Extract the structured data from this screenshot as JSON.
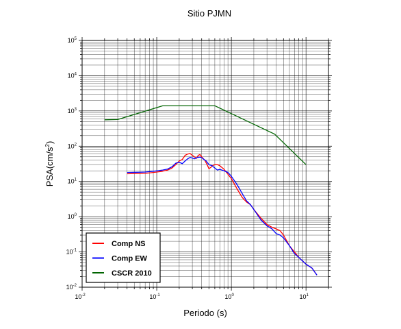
{
  "chart_data": {
    "type": "line",
    "title": "Sitio PJMN",
    "xlabel": "Periodo (s)",
    "ylabel": {
      "prefix": "PSA(cm/s",
      "exponent": "2",
      "suffix": ")"
    },
    "x_scale": "log",
    "y_scale": "log",
    "xlim": [
      0.01,
      20
    ],
    "ylim": [
      0.01,
      100000
    ],
    "grid": true,
    "legend_placement": "bottom-left",
    "x_ticks": [
      {
        "value": 0.01,
        "base": "10",
        "exp": "-2"
      },
      {
        "value": 0.1,
        "base": "10",
        "exp": "-1"
      },
      {
        "value": 1,
        "base": "10",
        "exp": "0"
      },
      {
        "value": 10,
        "base": "10",
        "exp": "1"
      }
    ],
    "y_ticks": [
      {
        "value": 0.01,
        "base": "10",
        "exp": "-2"
      },
      {
        "value": 0.1,
        "base": "10",
        "exp": "-1"
      },
      {
        "value": 1,
        "base": "10",
        "exp": "0"
      },
      {
        "value": 10,
        "base": "10",
        "exp": "1"
      },
      {
        "value": 100,
        "base": "10",
        "exp": "2"
      },
      {
        "value": 1000,
        "base": "10",
        "exp": "3"
      },
      {
        "value": 10000,
        "base": "10",
        "exp": "4"
      },
      {
        "value": 100000,
        "base": "10",
        "exp": "5"
      }
    ],
    "series": [
      {
        "name": "Comp NS",
        "color": "#ff0000",
        "points": [
          [
            0.04,
            16.5
          ],
          [
            0.05,
            16.7
          ],
          [
            0.06,
            16.8
          ],
          [
            0.07,
            17
          ],
          [
            0.08,
            17.5
          ],
          [
            0.09,
            18
          ],
          [
            0.1,
            18.5
          ],
          [
            0.12,
            19.5
          ],
          [
            0.14,
            21
          ],
          [
            0.16,
            24
          ],
          [
            0.18,
            30
          ],
          [
            0.2,
            38
          ],
          [
            0.22,
            42
          ],
          [
            0.24,
            55
          ],
          [
            0.26,
            60
          ],
          [
            0.28,
            62
          ],
          [
            0.3,
            55
          ],
          [
            0.32,
            50
          ],
          [
            0.34,
            45
          ],
          [
            0.36,
            55
          ],
          [
            0.38,
            58
          ],
          [
            0.4,
            50
          ],
          [
            0.44,
            40
          ],
          [
            0.48,
            28
          ],
          [
            0.5,
            23
          ],
          [
            0.53,
            25
          ],
          [
            0.56,
            28
          ],
          [
            0.6,
            30
          ],
          [
            0.65,
            30
          ],
          [
            0.7,
            28
          ],
          [
            0.8,
            22
          ],
          [
            0.9,
            16
          ],
          [
            1.0,
            12
          ],
          [
            1.2,
            6
          ],
          [
            1.4,
            3.5
          ],
          [
            1.6,
            2.6
          ],
          [
            1.8,
            2.2
          ],
          [
            2.0,
            1.6
          ],
          [
            2.5,
            0.9
          ],
          [
            3.0,
            0.6
          ],
          [
            3.5,
            0.5
          ],
          [
            4.0,
            0.45
          ],
          [
            4.5,
            0.4
          ],
          [
            5.0,
            0.3
          ],
          [
            6.0,
            0.15
          ],
          [
            7.0,
            0.1
          ],
          [
            8.0,
            0.07
          ],
          [
            10.0,
            0.045
          ],
          [
            12.0,
            0.035
          ],
          [
            14.0,
            0.022
          ]
        ]
      },
      {
        "name": "Comp EW",
        "color": "#0000ff",
        "points": [
          [
            0.04,
            18
          ],
          [
            0.05,
            18.1
          ],
          [
            0.06,
            18.3
          ],
          [
            0.07,
            18.5
          ],
          [
            0.08,
            19
          ],
          [
            0.09,
            19.5
          ],
          [
            0.1,
            20
          ],
          [
            0.12,
            21
          ],
          [
            0.14,
            22.5
          ],
          [
            0.16,
            26
          ],
          [
            0.18,
            33
          ],
          [
            0.2,
            35
          ],
          [
            0.22,
            32
          ],
          [
            0.24,
            38
          ],
          [
            0.26,
            44
          ],
          [
            0.28,
            48
          ],
          [
            0.3,
            46
          ],
          [
            0.32,
            44
          ],
          [
            0.35,
            48
          ],
          [
            0.38,
            49
          ],
          [
            0.4,
            47
          ],
          [
            0.43,
            42
          ],
          [
            0.46,
            38
          ],
          [
            0.5,
            30
          ],
          [
            0.55,
            28
          ],
          [
            0.6,
            24
          ],
          [
            0.65,
            21
          ],
          [
            0.7,
            22
          ],
          [
            0.8,
            20
          ],
          [
            0.9,
            18
          ],
          [
            1.0,
            14
          ],
          [
            1.2,
            8
          ],
          [
            1.4,
            4.5
          ],
          [
            1.6,
            2.8
          ],
          [
            1.8,
            2.2
          ],
          [
            2.0,
            1.6
          ],
          [
            2.5,
            0.8
          ],
          [
            3.0,
            0.55
          ],
          [
            3.5,
            0.45
          ],
          [
            4.0,
            0.33
          ],
          [
            4.5,
            0.3
          ],
          [
            5.0,
            0.25
          ],
          [
            6.0,
            0.15
          ],
          [
            7.0,
            0.09
          ],
          [
            8.0,
            0.07
          ],
          [
            10.0,
            0.045
          ],
          [
            12.0,
            0.035
          ],
          [
            14.0,
            0.022
          ]
        ]
      },
      {
        "name": "CSCR 2010",
        "color": "#006400",
        "points": [
          [
            0.02,
            560
          ],
          [
            0.03,
            570
          ],
          [
            0.12,
            1400
          ],
          [
            0.6,
            1400
          ],
          [
            3.8,
            220
          ],
          [
            10.0,
            30
          ]
        ]
      }
    ]
  }
}
